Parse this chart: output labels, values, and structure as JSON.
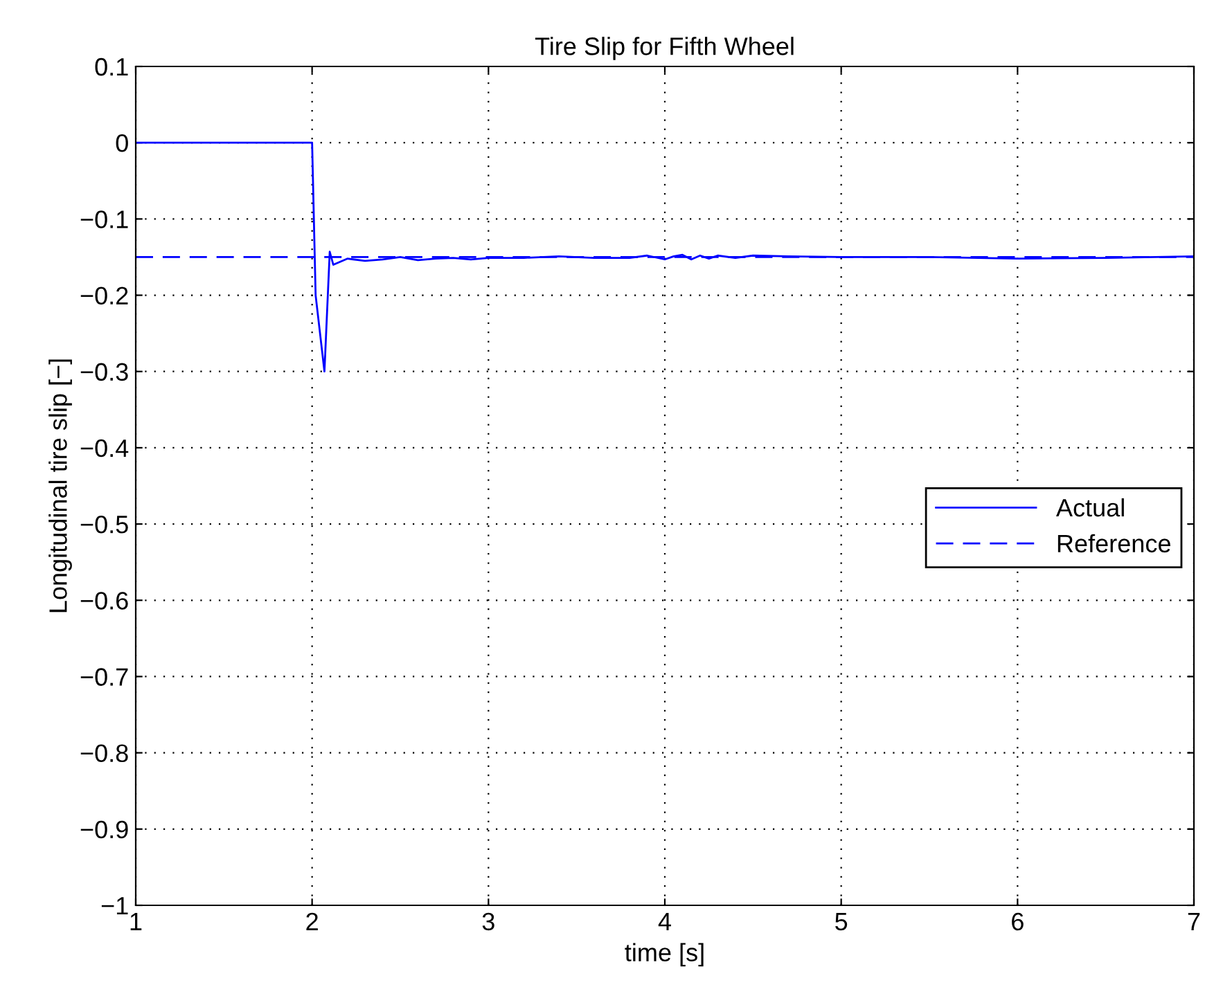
{
  "chart_data": {
    "type": "line",
    "title": "Tire Slip for Fifth Wheel",
    "xlabel": "time [s]",
    "ylabel": "Longitudinal tire slip [−]",
    "xlim": [
      1,
      7
    ],
    "ylim": [
      -1,
      0.1
    ],
    "xticks": [
      1,
      2,
      3,
      4,
      5,
      6,
      7
    ],
    "yticks": [
      -1,
      -0.9,
      -0.8,
      -0.7,
      -0.6,
      -0.5,
      -0.4,
      -0.3,
      -0.2,
      -0.1,
      0,
      0.1
    ],
    "grid": true,
    "legend": "right",
    "series": [
      {
        "name": "Actual",
        "color": "#0000ff",
        "line_style": "solid",
        "x": [
          1,
          2.0,
          2.02,
          2.07,
          2.1,
          2.12,
          2.2,
          2.3,
          2.4,
          2.5,
          2.6,
          2.7,
          2.8,
          2.9,
          3.0,
          3.2,
          3.4,
          3.6,
          3.8,
          3.9,
          4.0,
          4.05,
          4.1,
          4.15,
          4.2,
          4.25,
          4.3,
          4.4,
          4.5,
          4.7,
          5.0,
          5.5,
          6.0,
          6.5,
          7.0
        ],
        "values": [
          0,
          0,
          -0.2,
          -0.3,
          -0.143,
          -0.16,
          -0.152,
          -0.155,
          -0.153,
          -0.15,
          -0.154,
          -0.152,
          -0.151,
          -0.153,
          -0.151,
          -0.151,
          -0.149,
          -0.151,
          -0.151,
          -0.148,
          -0.153,
          -0.149,
          -0.147,
          -0.153,
          -0.148,
          -0.152,
          -0.148,
          -0.151,
          -0.148,
          -0.149,
          -0.15,
          -0.15,
          -0.152,
          -0.151,
          -0.149
        ]
      },
      {
        "name": "Reference",
        "color": "#0000ff",
        "line_style": "dashed",
        "x": [
          1,
          7
        ],
        "values": [
          -0.15,
          -0.15
        ]
      }
    ]
  }
}
